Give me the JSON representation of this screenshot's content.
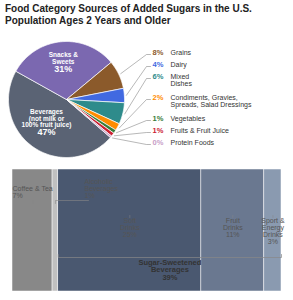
{
  "chart_data": [
    {
      "type": "pie",
      "title": "Food Category Sources of Added Sugars in the U.S. Population Ages 2 Years and Older",
      "categories": [
        "Beverages\n(not milk or\n100% fruit juice)",
        "Snacks &\nSweets",
        "Grains",
        "Dairy",
        "Mixed\nDishes",
        "Condiments, Gravies,\nSpreads, Salad Dressings",
        "Vegetables",
        "Fruits & Fruit Juice",
        "Protein Foods"
      ],
      "values": [
        47,
        31,
        8,
        4,
        6,
        2,
        1,
        1,
        0.5
      ],
      "value_labels": [
        "47%",
        "31%",
        "8%",
        "4%",
        "6%",
        "2%",
        "1%",
        "1%",
        "0%"
      ],
      "colors": [
        "#5a6374",
        "#7b68b0",
        "#8b5a2b",
        "#4169e1",
        "#2e8b8b",
        "#ff8c00",
        "#3a7d3a",
        "#cc2233",
        "#c8a0c8"
      ],
      "data_labels": true
    },
    {
      "type": "bar",
      "orientation": "horizontal",
      "stacked": true,
      "series": [
        {
          "name": "Coffee & Tea",
          "color": "#888888",
          "values": [
            7
          ],
          "value_labels": [
            "7%"
          ]
        },
        {
          "name": "Alcoholic\nBeverages",
          "color": "#c0c0c0",
          "values": [
            1
          ],
          "value_labels": [
            "1%"
          ]
        },
        {
          "name": "Soft\nDrinks",
          "color": "#4a5870",
          "values": [
            25
          ],
          "value_labels": [
            "25%"
          ]
        },
        {
          "name": "Fruit\nDrinks",
          "color": "#6a7890",
          "values": [
            11
          ],
          "value_labels": [
            "11%"
          ]
        },
        {
          "name": "Sport &\nEnergy\nDrinks",
          "color": "#8a9ab0",
          "values": [
            3
          ],
          "value_labels": [
            "3%"
          ]
        }
      ],
      "xlim": [
        0,
        47
      ],
      "tick_labels": false,
      "data_labels": true,
      "annotations": [
        {
          "text": "Sugar-Sweetened\nBeverages",
          "value": 39,
          "label": "39%"
        }
      ]
    }
  ]
}
